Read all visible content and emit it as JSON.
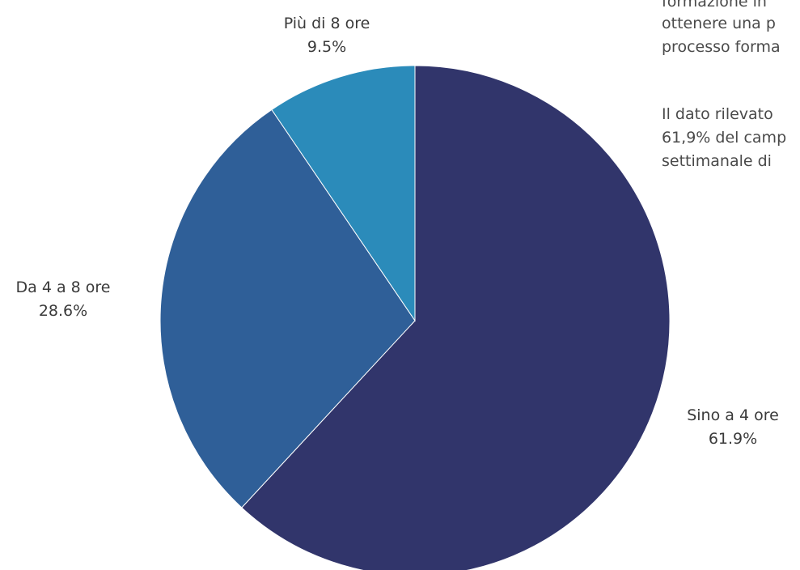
{
  "chart_data": {
    "type": "pie",
    "categories": [
      "Sino a 4 ore",
      "Da 4 a 8 ore",
      "Più di 8 ore"
    ],
    "values": [
      61.9,
      28.6,
      9.5
    ],
    "value_labels": [
      "61.9%",
      "28.6%",
      "9.5%"
    ],
    "colors": [
      "#31356b",
      "#2f5f98",
      "#2b8bba"
    ],
    "title": "",
    "legend": "none"
  },
  "side_text": {
    "line1": "formazione in",
    "line2": "ottenere una p",
    "line3": "processo forma",
    "line4": "Il dato rilevato",
    "line5": "61,9% del camp",
    "line6": "settimanale di"
  }
}
